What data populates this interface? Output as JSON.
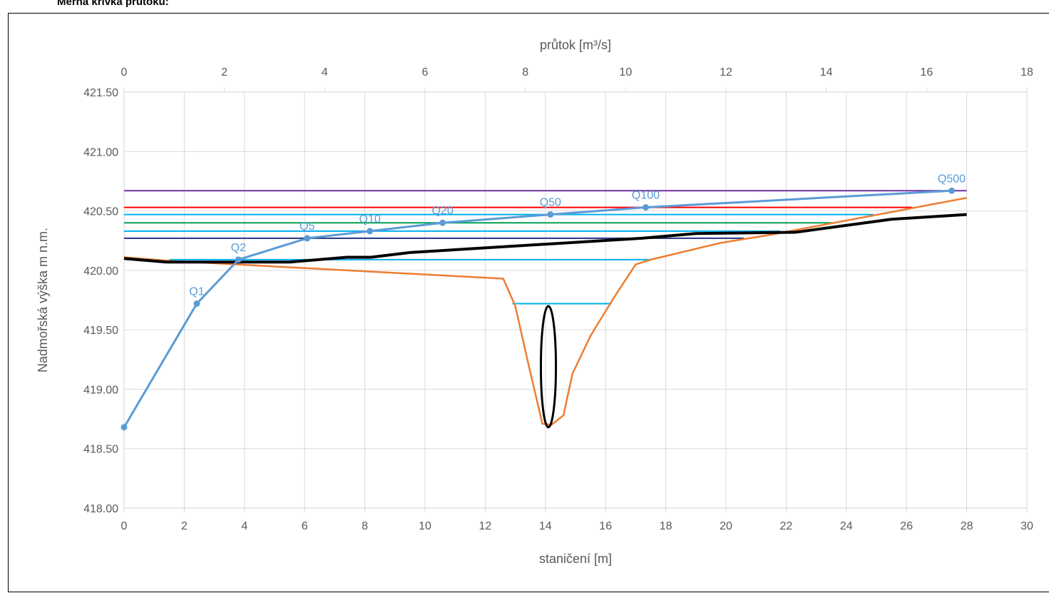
{
  "page": {
    "title": "Měrná křivka průtoku:"
  },
  "chart_data": {
    "type": "line",
    "xlabel": "staničení [m]",
    "ylabel": "Nadmořská výška m n.m.",
    "x2label": "průtok [m³/s]",
    "xlim": [
      0,
      30
    ],
    "x2lim": [
      0,
      18
    ],
    "ylim": [
      418.0,
      421.5
    ],
    "x_ticks": [
      0,
      2,
      4,
      6,
      8,
      10,
      12,
      14,
      16,
      18,
      20,
      22,
      24,
      26,
      28,
      30
    ],
    "x2_ticks": [
      0,
      2,
      4,
      6,
      8,
      10,
      12,
      14,
      16,
      18
    ],
    "y_ticks": [
      "418.00",
      "418.50",
      "419.00",
      "419.50",
      "420.00",
      "420.50",
      "421.00",
      "421.50"
    ],
    "grid": true,
    "colors": {
      "rating_curve": "#5B9BD5",
      "cross_section": "#ED7D31",
      "terrain": "#000000",
      "ellipse": "#000000",
      "axis": "#D9D9D9",
      "text": "#595959"
    },
    "rating_curve": {
      "axis": "x2",
      "points": [
        {
          "q": 0.0,
          "h": 418.68,
          "label": ""
        },
        {
          "q": 1.45,
          "h": 419.72,
          "label": "Q1"
        },
        {
          "q": 2.28,
          "h": 420.09,
          "label": "Q2"
        },
        {
          "q": 3.65,
          "h": 420.27,
          "label": "Q5"
        },
        {
          "q": 4.9,
          "h": 420.33,
          "label": "Q10"
        },
        {
          "q": 6.35,
          "h": 420.4,
          "label": "Q20"
        },
        {
          "q": 8.5,
          "h": 420.47,
          "label": "Q50"
        },
        {
          "q": 10.4,
          "h": 420.53,
          "label": "Q100"
        },
        {
          "q": 16.5,
          "h": 420.67,
          "label": "Q500"
        }
      ]
    },
    "cross_section": {
      "x": [
        0.0,
        1.5,
        12.6,
        13.0,
        13.4,
        13.9,
        14.2,
        14.6,
        14.9,
        15.5,
        16.3,
        17.0,
        17.5,
        19.8,
        21.5,
        28.0
      ],
      "y": [
        420.11,
        420.08,
        419.93,
        419.7,
        419.25,
        418.71,
        418.7,
        418.78,
        419.13,
        419.45,
        419.78,
        420.05,
        420.09,
        420.23,
        420.3,
        420.61
      ]
    },
    "terrain_line": {
      "x": [
        0.0,
        1.4,
        5.5,
        7.4,
        8.2,
        9.5,
        17.2,
        19.0,
        22.3,
        25.5,
        28.0
      ],
      "y": [
        420.1,
        420.07,
        420.07,
        420.11,
        420.11,
        420.15,
        420.27,
        420.31,
        420.32,
        420.43,
        420.47
      ]
    },
    "water_levels": [
      {
        "h": 419.72,
        "x1": 12.9,
        "x2": 16.2,
        "color": "#00B0F0"
      },
      {
        "h": 420.09,
        "x1": 1.5,
        "x2": 17.5,
        "color": "#00B0F0"
      },
      {
        "h": 420.27,
        "x1": 0.0,
        "x2": 20.6,
        "color": "#1F3580"
      },
      {
        "h": 420.33,
        "x1": 0.0,
        "x2": 21.8,
        "color": "#00B0F0"
      },
      {
        "h": 420.4,
        "x1": 0.0,
        "x2": 23.5,
        "color": "#00A050"
      },
      {
        "h": 420.47,
        "x1": 0.0,
        "x2": 24.9,
        "color": "#00B0F0"
      },
      {
        "h": 420.53,
        "x1": 0.0,
        "x2": 26.2,
        "color": "#FF0000"
      },
      {
        "h": 420.67,
        "x1": 0.0,
        "x2": 28.0,
        "color": "#7030A0"
      }
    ],
    "ellipse": {
      "cx": 14.1,
      "cy": 419.19,
      "rx": 0.5,
      "ry": 0.51
    }
  }
}
